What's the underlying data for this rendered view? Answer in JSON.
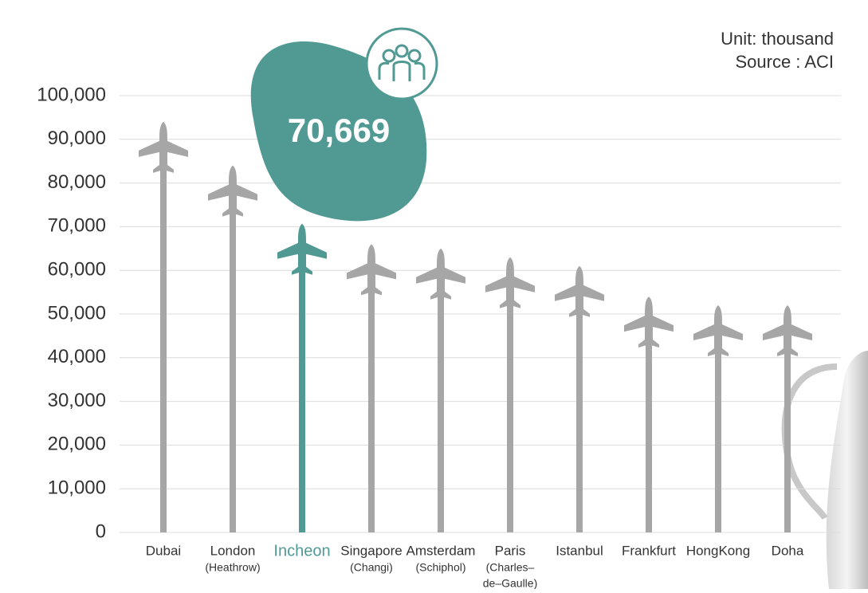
{
  "chart_data": {
    "type": "plane-bar",
    "note": "Unit: thousand",
    "source": "Source : ACI",
    "categories": [
      "Dubai",
      "London",
      "Incheon",
      "Singapore",
      "Amsterdam",
      "Paris",
      "Istanbul",
      "Frankfurt",
      "HongKong",
      "Doha"
    ],
    "sublabels": [
      [],
      [
        "(Heathrow)"
      ],
      [],
      [
        "(Changi)"
      ],
      [
        "(Schiphol)"
      ],
      [
        "(Charles–",
        "de–Gaulle)"
      ],
      [],
      [],
      [],
      []
    ],
    "values": [
      94000,
      84000,
      70669,
      66000,
      65000,
      63000,
      61000,
      54000,
      52000,
      52000
    ],
    "color": "#a6a6a6",
    "highlight_color": "#519a94",
    "callout": {
      "index": 2,
      "label": "70,669"
    },
    "ylim": [
      0,
      100000
    ],
    "yticks": [
      0,
      {
        "value": 10000,
        "label": "10,000"
      },
      {
        "value": 20000,
        "label": "20,000"
      },
      {
        "value": 30000,
        "label": "30,000"
      },
      {
        "value": 40000,
        "label": "40,000"
      },
      {
        "value": 50000,
        "label": "50,000"
      },
      {
        "value": 60000,
        "label": "60,000"
      },
      {
        "value": 70000,
        "label": "70,000"
      },
      {
        "value": 80000,
        "label": "80,000"
      },
      {
        "value": 90000,
        "label": "90,000"
      },
      {
        "value": 100000,
        "label": "100,000"
      }
    ],
    "grid": true
  }
}
